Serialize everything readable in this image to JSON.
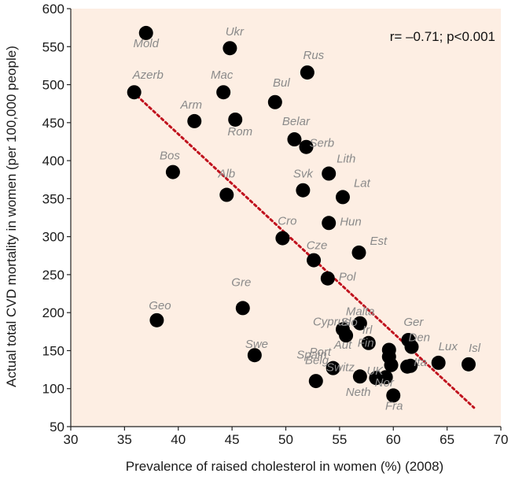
{
  "chart_data": {
    "type": "scatter",
    "xlabel": "Prevalence of raised cholesterol in women (%) (2008)",
    "ylabel": "Actual total CVD mortality in women (per 100,000 people)",
    "xlim": [
      30,
      70
    ],
    "ylim": [
      50,
      600
    ],
    "x_ticks": [
      30,
      35,
      40,
      45,
      50,
      55,
      60,
      65,
      70
    ],
    "y_ticks": [
      50,
      100,
      150,
      200,
      250,
      300,
      350,
      400,
      450,
      500,
      550,
      600
    ],
    "grid": false,
    "annotation": "r= –0.71; p<0.001",
    "trendline": {
      "style": "dotted",
      "from": [
        35.8,
        490
      ],
      "to": [
        67.5,
        75
      ]
    },
    "colors": {
      "plot_background": "#fdeee3",
      "points": "#000000",
      "trendline": "#c0121e",
      "labels": "#8a8a8a"
    },
    "points": [
      {
        "label": "Mold",
        "x": 37.0,
        "y": 568
      },
      {
        "label": "Ukr",
        "x": 44.8,
        "y": 548
      },
      {
        "label": "Rus",
        "x": 52.0,
        "y": 516
      },
      {
        "label": "Azerb",
        "x": 35.9,
        "y": 490
      },
      {
        "label": "Mac",
        "x": 44.2,
        "y": 490
      },
      {
        "label": "Bul",
        "x": 49.0,
        "y": 477
      },
      {
        "label": "Arm",
        "x": 41.5,
        "y": 452
      },
      {
        "label": "Rom",
        "x": 45.3,
        "y": 454
      },
      {
        "label": "Belar",
        "x": 50.8,
        "y": 428
      },
      {
        "label": "Serb",
        "x": 51.9,
        "y": 418
      },
      {
        "label": "Lith",
        "x": 54.0,
        "y": 383
      },
      {
        "label": "Bos",
        "x": 39.5,
        "y": 385
      },
      {
        "label": "Svk",
        "x": 51.6,
        "y": 361
      },
      {
        "label": "Alb",
        "x": 44.5,
        "y": 355
      },
      {
        "label": "Lat",
        "x": 55.3,
        "y": 352
      },
      {
        "label": "Hun",
        "x": 54.0,
        "y": 318
      },
      {
        "label": "Cro",
        "x": 49.7,
        "y": 298
      },
      {
        "label": "Est",
        "x": 56.8,
        "y": 279
      },
      {
        "label": "Cze",
        "x": 52.6,
        "y": 269
      },
      {
        "label": "Pol",
        "x": 53.9,
        "y": 245
      },
      {
        "label": "Gre",
        "x": 46.0,
        "y": 206
      },
      {
        "label": "Geo",
        "x": 38.0,
        "y": 190
      },
      {
        "label": "Malta",
        "x": 56.9,
        "y": 186
      },
      {
        "label": "Cyprus",
        "x": 55.3,
        "y": 178
      },
      {
        "label": "Slo",
        "x": 55.6,
        "y": 170
      },
      {
        "label": "Ger",
        "x": 61.4,
        "y": 164
      },
      {
        "label": "Irl",
        "x": 57.7,
        "y": 160
      },
      {
        "label": "Den",
        "x": 61.7,
        "y": 155
      },
      {
        "label": "Fin",
        "x": 59.6,
        "y": 151
      },
      {
        "label": "Swe",
        "x": 47.1,
        "y": 144
      },
      {
        "label": "Aut",
        "x": 59.6,
        "y": 142
      },
      {
        "label": "Lux",
        "x": 64.2,
        "y": 134
      },
      {
        "label": "Isl",
        "x": 67.0,
        "y": 132
      },
      {
        "label": "Port",
        "x": 59.8,
        "y": 131
      },
      {
        "label": "Belg",
        "x": 61.3,
        "y": 129
      },
      {
        "label": "Ita",
        "x": 61.6,
        "y": 130
      },
      {
        "label": "Spain",
        "x": 54.4,
        "y": 127
      },
      {
        "label": "Switz",
        "x": 56.9,
        "y": 116
      },
      {
        "label": "Nor",
        "x": 59.3,
        "y": 115
      },
      {
        "label": "UK",
        "x": 58.4,
        "y": 114
      },
      {
        "label": "Neth",
        "x": 52.8,
        "y": 110
      },
      {
        "label": "Fra",
        "x": 60.0,
        "y": 91
      }
    ]
  }
}
